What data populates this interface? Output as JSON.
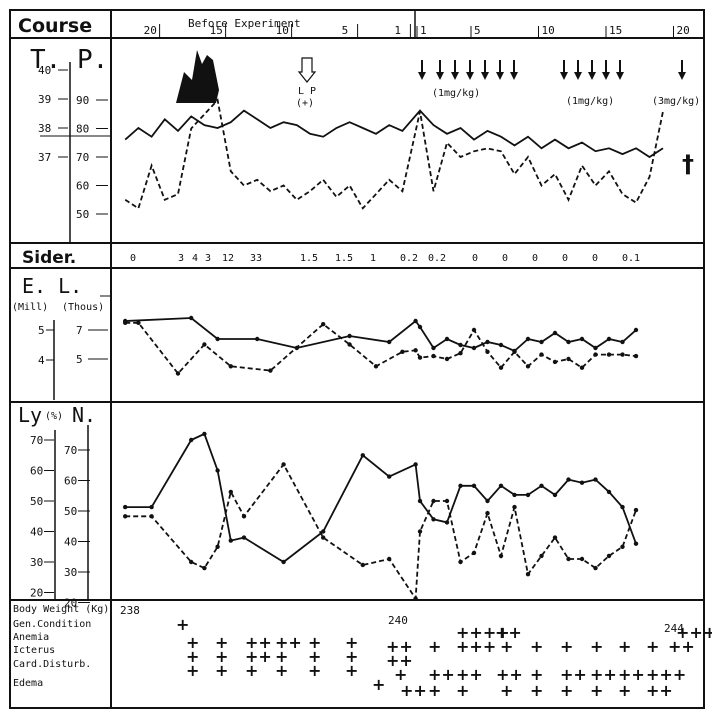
{
  "header": {
    "course_label": "Course",
    "experiment_label": "Before Experiment",
    "before_ticks": [
      "20",
      "15",
      "10",
      "5",
      "1"
    ],
    "after_ticks": [
      "1",
      "5",
      "10",
      "15",
      "20"
    ]
  },
  "tp": {
    "label": "T. P.",
    "temp_ticks": [
      "40",
      "39",
      "38",
      "37"
    ],
    "pulse_ticks": [
      "90",
      "80",
      "70",
      "60",
      "50"
    ],
    "lp_label": "L P",
    "lp_sign": "(+)",
    "doses": [
      "(1mg/kg)",
      "(1mg/kg)",
      "(3mg/kg)"
    ],
    "death_mark": "†"
  },
  "sider": {
    "label": "Sider.",
    "values": [
      "0",
      "3",
      "4",
      "3",
      "12",
      "33",
      "1.5",
      "1.5",
      "1",
      "0.2",
      "0.2",
      "0",
      "0",
      "0",
      "0",
      "0",
      "0.1"
    ]
  },
  "el": {
    "label": "E. L.",
    "sub_e": "(Mill)",
    "sub_l": "(Thous)",
    "e_ticks": [
      "5",
      "4"
    ],
    "l_ticks": [
      "7",
      "5"
    ]
  },
  "lyn": {
    "label_ly": "Ly",
    "label_pct": "(%)",
    "label_n": "N.",
    "left_ticks": [
      "70",
      "60",
      "50",
      "40",
      "30",
      "20"
    ],
    "right_ticks": [
      "70",
      "60",
      "50",
      "40",
      "30",
      "20"
    ]
  },
  "bottom": {
    "rows": [
      "Body Weight (Kg)",
      "Gen.Condition",
      "Anemia",
      "Icterus",
      "Card.Disturb.",
      "Edema"
    ],
    "weights": [
      "238",
      "240",
      "244"
    ]
  },
  "chart_data": {
    "type": "line",
    "temperature": {
      "x": [
        -22,
        -21,
        -20,
        -19,
        -18,
        -17,
        -16,
        -15,
        -14,
        -13,
        -12,
        -11,
        -10,
        -9,
        -8,
        -7,
        -6,
        -5,
        -4,
        -3,
        -2,
        -1,
        1,
        2,
        3,
        4,
        5,
        6,
        7,
        8,
        9,
        10,
        11,
        12,
        13,
        14,
        15,
        16,
        17,
        18,
        19
      ],
      "y": [
        37.6,
        38.0,
        37.7,
        38.3,
        37.9,
        38.4,
        38.1,
        38.0,
        38.2,
        38.6,
        38.3,
        38.0,
        38.2,
        38.1,
        37.8,
        37.7,
        38.0,
        38.2,
        38.0,
        37.8,
        38.1,
        37.9,
        38.6,
        38.1,
        37.8,
        38.0,
        37.6,
        37.9,
        37.7,
        37.4,
        37.7,
        37.3,
        37.6,
        37.3,
        37.5,
        37.2,
        37.3,
        37.1,
        37.3,
        37.0,
        37.3
      ]
    },
    "pulse": {
      "x": [
        -22,
        -21,
        -20,
        -19,
        -18,
        -17,
        -16,
        -15,
        -14,
        -13,
        -12,
        -11,
        -10,
        -9,
        -8,
        -7,
        -6,
        -5,
        -4,
        -3,
        -2,
        -1,
        1,
        2,
        3,
        4,
        5,
        6,
        7,
        8,
        9,
        10,
        11,
        12,
        13,
        14,
        15,
        16,
        17,
        18,
        19
      ],
      "y": [
        55,
        52,
        67,
        55,
        57,
        80,
        85,
        90,
        65,
        60,
        62,
        58,
        60,
        55,
        58,
        62,
        56,
        60,
        52,
        57,
        62,
        58,
        86,
        58,
        75,
        70,
        72,
        73,
        72,
        64,
        70,
        60,
        64,
        55,
        67,
        60,
        65,
        57,
        54,
        63,
        86
      ]
    },
    "erythrocytes": {
      "x": [
        -22,
        -17,
        -15,
        -12,
        -9,
        -5,
        -2,
        0,
        1,
        2,
        3,
        4,
        5,
        6,
        7,
        8,
        9,
        10,
        11,
        12,
        13,
        14,
        15,
        16,
        17
      ],
      "y": [
        5.3,
        5.4,
        4.7,
        4.7,
        4.4,
        4.8,
        4.6,
        5.3,
        5.1,
        4.4,
        4.7,
        4.5,
        4.4,
        4.6,
        4.5,
        4.3,
        4.7,
        4.6,
        4.9,
        4.6,
        4.7,
        4.4,
        4.7,
        4.6,
        5.0
      ]
    },
    "leukocytes": {
      "x": [
        -22,
        -21,
        -18,
        -16,
        -14,
        -11,
        -7,
        -5,
        -3,
        -1,
        0,
        1,
        2,
        3,
        4,
        5,
        6,
        7,
        8,
        9,
        10,
        11,
        12,
        13,
        14,
        15,
        16,
        17
      ],
      "y": [
        7.5,
        7.5,
        4.0,
        6.0,
        4.5,
        4.2,
        7.4,
        6.0,
        4.5,
        5.5,
        5.6,
        5.1,
        5.2,
        5.0,
        5.4,
        7.0,
        5.5,
        4.4,
        5.5,
        4.5,
        5.3,
        4.8,
        5.0,
        4.4,
        5.3,
        5.3,
        5.3,
        5.2
      ]
    },
    "lymphocytes": {
      "x": [
        -22,
        -20,
        -17,
        -16,
        -15,
        -14,
        -13,
        -10,
        -7,
        -4,
        -2,
        0,
        1,
        2,
        3,
        4,
        5,
        6,
        7,
        8,
        9,
        10,
        11,
        12,
        13,
        14,
        15,
        16,
        17
      ],
      "y": [
        48,
        48,
        70,
        72,
        60,
        37,
        38,
        30,
        40,
        65,
        58,
        62,
        50,
        44,
        43,
        55,
        55,
        50,
        55,
        52,
        52,
        55,
        52,
        57,
        56,
        57,
        53,
        48,
        36
      ],
      "y_scale_note": "left axis"
    },
    "neutrophils": {
      "x": [
        -22,
        -20,
        -17,
        -16,
        -15,
        -14,
        -13,
        -10,
        -7,
        -4,
        -2,
        0,
        1,
        2,
        3,
        4,
        5,
        6,
        7,
        8,
        9,
        10,
        11,
        12,
        13,
        14,
        15,
        16,
        17
      ],
      "y": [
        45,
        45,
        30,
        28,
        35,
        53,
        45,
        62,
        38,
        29,
        31,
        18,
        40,
        50,
        50,
        30,
        33,
        46,
        32,
        48,
        26,
        32,
        38,
        31,
        31,
        28,
        32,
        35,
        47
      ]
    },
    "axis": {
      "temp_range": [
        36.5,
        40.5
      ],
      "el_e_range": [
        3.5,
        6.0
      ],
      "lyn_range": [
        15,
        75
      ],
      "x_range": [
        -23,
        20
      ]
    }
  }
}
